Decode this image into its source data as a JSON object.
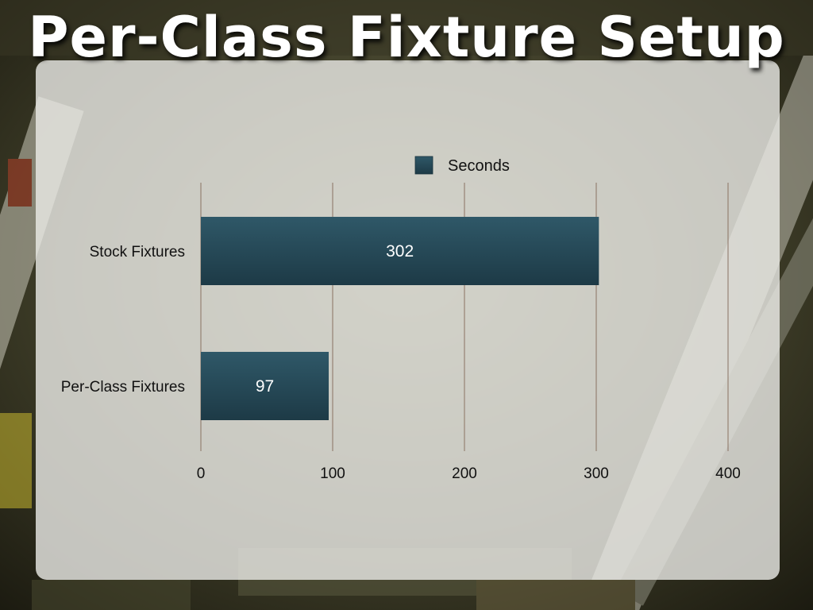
{
  "slide": {
    "title": "Per-Class Fixture Setup"
  },
  "colors": {
    "bar_top": "#2f5868",
    "bar_bottom": "#1d3a46",
    "gridline": "#8a7262",
    "panel": "#ececE8",
    "title_text": "#ffffff"
  },
  "chart_data": {
    "type": "bar",
    "orientation": "horizontal",
    "categories": [
      "Stock Fixtures",
      "Per-Class Fixtures"
    ],
    "series": [
      {
        "name": "Seconds",
        "values": [
          302,
          97
        ]
      }
    ],
    "data_labels": [
      "302",
      "97"
    ],
    "xlim": [
      0,
      400
    ],
    "x_ticks": [
      0,
      100,
      200,
      300,
      400
    ],
    "x_tick_labels": [
      "0",
      "100",
      "200",
      "300",
      "400"
    ],
    "grid": "vertical",
    "legend": "top-center"
  }
}
